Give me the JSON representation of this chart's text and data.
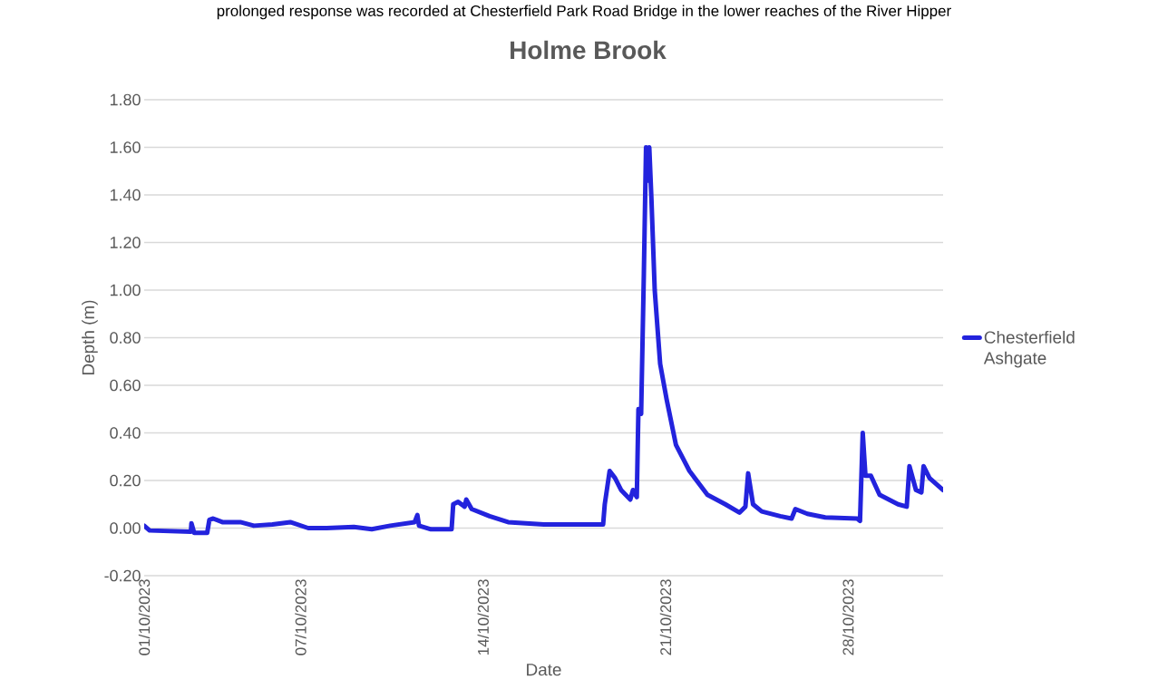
{
  "chart_data": {
    "type": "line",
    "title": "Holme Brook",
    "xlabel": "Date",
    "ylabel": "Depth (m)",
    "annotations": [
      "prolonged response was recorded at Chesterfield Park Road Bridge in the lower reaches of the River Hipper"
    ],
    "x": [
      "2023-10-01T00:00",
      "2023-10-01T05:00",
      "2023-10-02T19:00",
      "2023-10-02T19:30",
      "2023-10-02T22:00",
      "2023-10-03T10:00",
      "2023-10-03T12:00",
      "2023-10-03T15:30",
      "2023-10-04T00:00",
      "2023-10-04T16:30",
      "2023-10-05T05:00",
      "2023-10-05T22:00",
      "2023-10-06T14:30",
      "2023-10-07T07:00",
      "2023-10-08T00:00",
      "2023-10-09T01:00",
      "2023-10-09T17:30",
      "2023-10-10T10:30",
      "2023-10-11T09:00",
      "2023-10-11T11:30",
      "2023-10-11T13:00",
      "2023-10-12T00:00",
      "2023-10-12T19:00",
      "2023-10-12T20:30",
      "2023-10-13T01:00",
      "2023-10-13T07:00",
      "2023-10-13T08:30",
      "2023-10-13T13:30",
      "2023-10-14T06:00",
      "2023-10-14T23:00",
      "2023-10-16T08:00",
      "2023-10-17T17:30",
      "2023-10-18T14:30",
      "2023-10-18T16:00",
      "2023-10-18T20:30",
      "2023-10-19T01:30",
      "2023-10-19T07:00",
      "2023-10-19T15:30",
      "2023-10-19T18:00",
      "2023-10-19T21:30",
      "2023-10-19T23:00",
      "2023-10-20T01:30",
      "2023-10-20T04:00",
      "2023-10-20T06:00",
      "2023-10-20T07:30",
      "2023-10-20T09:00",
      "2023-10-20T11:00",
      "2023-10-20T14:00",
      "2023-10-20T19:00",
      "2023-10-21T01:00",
      "2023-10-21T09:30",
      "2023-10-21T22:00",
      "2023-10-22T14:30",
      "2023-10-23T07:00",
      "2023-10-23T20:00",
      "2023-10-24T01:30",
      "2023-10-24T04:00",
      "2023-10-24T08:30",
      "2023-10-24T16:30",
      "2023-10-25T09:30",
      "2023-10-25T20:00",
      "2023-10-25T23:30",
      "2023-10-26T10:30",
      "2023-10-27T03:00",
      "2023-10-28T08:30",
      "2023-10-28T11:00",
      "2023-10-28T13:30",
      "2023-10-28T16:00",
      "2023-10-28T21:00",
      "2023-10-29T05:00",
      "2023-10-29T22:00",
      "2023-10-30T06:00",
      "2023-10-30T08:30",
      "2023-10-30T14:30",
      "2023-10-30T19:30",
      "2023-10-30T21:30",
      "2023-10-31T03:00",
      "2023-10-31T15:30"
    ],
    "series": [
      {
        "name": "Chesterfield Ashgate",
        "color": "#2323dd",
        "values": [
          0.01,
          -0.01,
          -0.015,
          0.02,
          -0.02,
          -0.02,
          0.035,
          0.04,
          0.025,
          0.025,
          0.01,
          0.015,
          0.025,
          0.0,
          0.0,
          0.005,
          -0.005,
          0.01,
          0.025,
          0.055,
          0.01,
          -0.005,
          -0.005,
          0.1,
          0.11,
          0.09,
          0.12,
          0.08,
          0.05,
          0.025,
          0.015,
          0.015,
          0.015,
          0.1,
          0.24,
          0.21,
          0.16,
          0.12,
          0.16,
          0.13,
          0.5,
          0.48,
          1.07,
          1.6,
          1.46,
          1.6,
          1.38,
          1.0,
          0.69,
          0.54,
          0.35,
          0.24,
          0.14,
          0.1,
          0.065,
          0.09,
          0.23,
          0.1,
          0.07,
          0.05,
          0.04,
          0.08,
          0.06,
          0.045,
          0.04,
          0.03,
          0.4,
          0.22,
          0.22,
          0.14,
          0.1,
          0.09,
          0.26,
          0.16,
          0.15,
          0.26,
          0.21,
          0.16
        ]
      }
    ],
    "xlim": [
      "2023-10-01",
      "2023-10-31T15:30"
    ],
    "xticks": [
      {
        "value": "2023-10-01",
        "label": "01/10/2023"
      },
      {
        "value": "2023-10-07",
        "label": "07/10/2023"
      },
      {
        "value": "2023-10-14",
        "label": "14/10/2023"
      },
      {
        "value": "2023-10-21",
        "label": "21/10/2023"
      },
      {
        "value": "2023-10-28",
        "label": "28/10/2023"
      }
    ],
    "ylim": [
      -0.2,
      1.8
    ],
    "yticks": [
      {
        "value": -0.2,
        "label": "-0.20"
      },
      {
        "value": 0,
        "label": "0.00"
      },
      {
        "value": 0.2,
        "label": "0.20"
      },
      {
        "value": 0.4,
        "label": "0.40"
      },
      {
        "value": 0.6,
        "label": "0.60"
      },
      {
        "value": 0.8,
        "label": "0.80"
      },
      {
        "value": 1.0,
        "label": "1.00"
      },
      {
        "value": 1.2,
        "label": "1.20"
      },
      {
        "value": 1.4,
        "label": "1.40"
      },
      {
        "value": 1.6,
        "label": "1.60"
      },
      {
        "value": 1.8,
        "label": "1.80"
      }
    ],
    "grid": "y",
    "legend": "right",
    "marker": "none",
    "line_style": "solid"
  }
}
